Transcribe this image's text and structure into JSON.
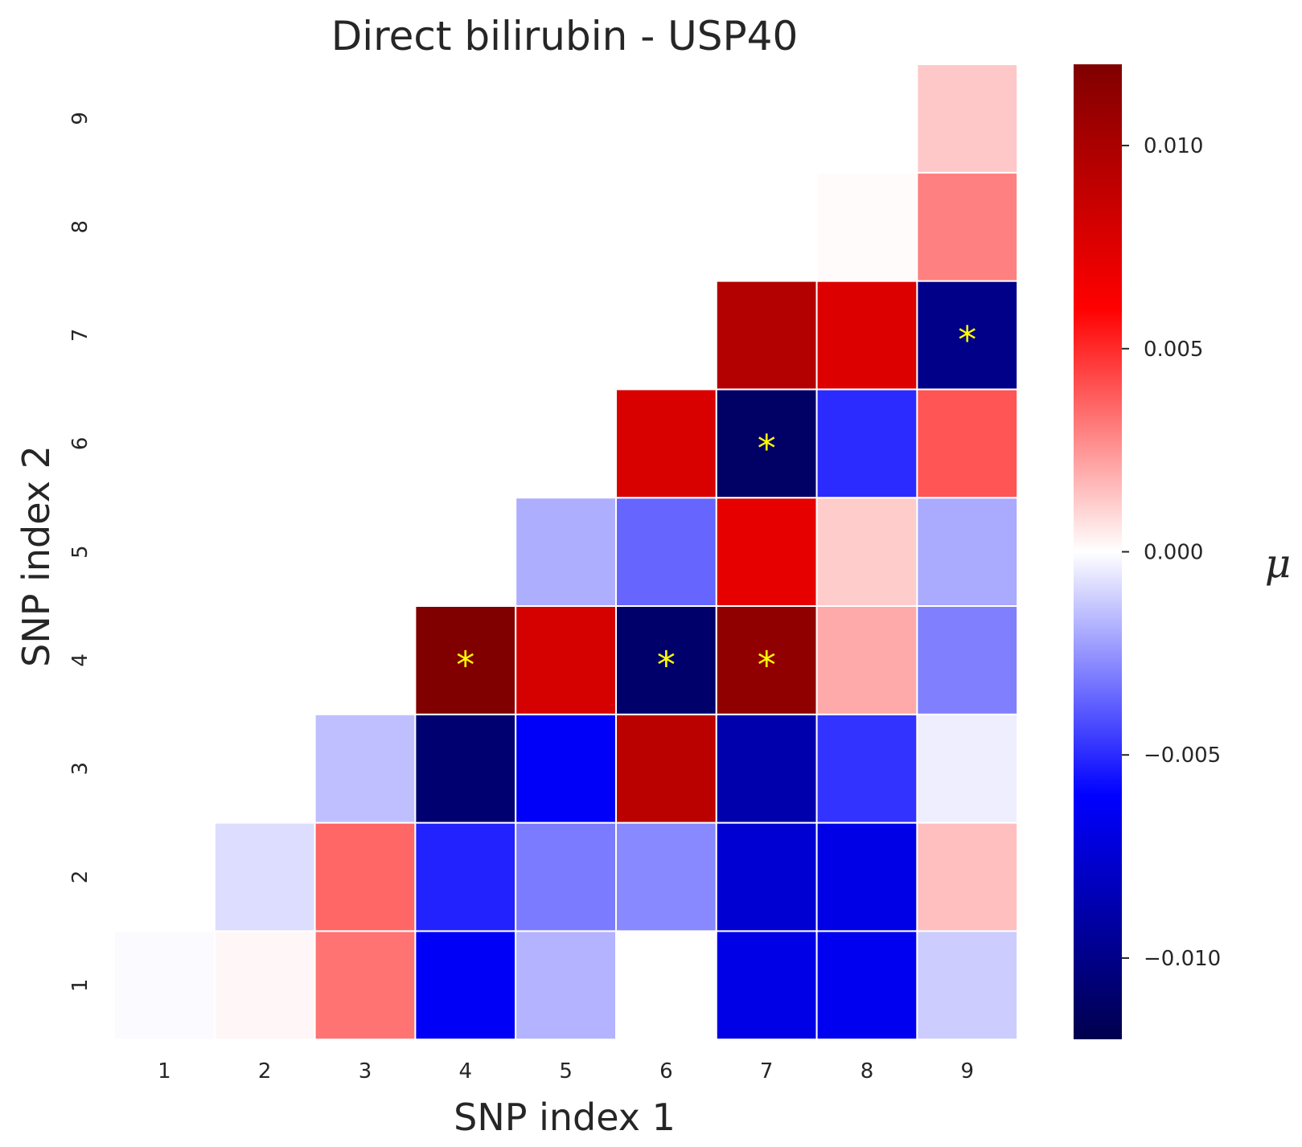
{
  "chart_data": {
    "type": "heatmap",
    "title": "Direct bilirubin - USP40",
    "xlabel": "SNP index 1",
    "ylabel": "SNP index 2",
    "x_categories": [
      "1",
      "2",
      "3",
      "4",
      "5",
      "6",
      "7",
      "8",
      "9"
    ],
    "y_categories": [
      "1",
      "2",
      "3",
      "4",
      "5",
      "6",
      "7",
      "8",
      "9"
    ],
    "colormap": "seismic",
    "vmin": -0.012,
    "vmax": 0.012,
    "colorbar_label": "μ",
    "colorbar_ticks": [
      0.01,
      0.005,
      0.0,
      -0.005,
      -0.01
    ],
    "colorbar_tick_labels": [
      "0.010",
      "0.005",
      "0.000",
      "−0.005",
      "−0.010"
    ],
    "marker_color": "#ffff00",
    "grid_line_color": "#ffffff",
    "values": [
      [
        -0.0001,
        0.0002,
        0.0033,
        -0.0063,
        -0.0018,
        0.0,
        -0.0068,
        -0.0065,
        -0.0012
      ],
      [
        null,
        -0.0008,
        0.0036,
        -0.0052,
        -0.0031,
        -0.0028,
        -0.0075,
        -0.0068,
        0.0015
      ],
      [
        null,
        null,
        -0.0015,
        -0.0108,
        -0.0062,
        0.0092,
        -0.0088,
        -0.0048,
        -0.0004
      ],
      [
        null,
        null,
        null,
        0.0121,
        0.008,
        -0.011,
        0.0112,
        0.002,
        -0.003
      ],
      [
        null,
        null,
        null,
        null,
        -0.0019,
        -0.0036,
        0.0072,
        0.0012,
        -0.002
      ],
      [
        null,
        null,
        null,
        null,
        null,
        0.0078,
        -0.0112,
        -0.005,
        0.004
      ],
      [
        null,
        null,
        null,
        null,
        null,
        null,
        0.0096,
        0.0076,
        -0.01
      ],
      [
        null,
        null,
        null,
        null,
        null,
        null,
        null,
        0.0001,
        0.003
      ],
      [
        null,
        null,
        null,
        null,
        null,
        null,
        null,
        null,
        0.0013
      ]
    ],
    "significant": [
      {
        "x": "4",
        "y": "4",
        "label": "*"
      },
      {
        "x": "6",
        "y": "4",
        "label": "*"
      },
      {
        "x": "7",
        "y": "4",
        "label": "*"
      },
      {
        "x": "7",
        "y": "6",
        "label": "*"
      },
      {
        "x": "9",
        "y": "7",
        "label": "*"
      }
    ]
  }
}
